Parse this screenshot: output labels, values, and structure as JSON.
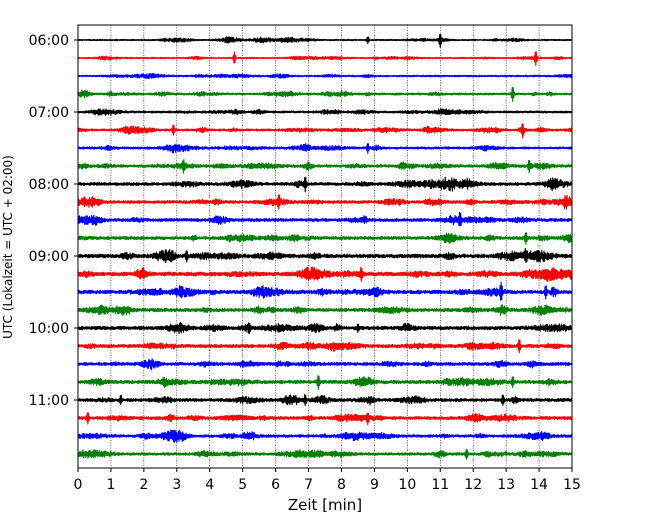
{
  "chart_data": {
    "type": "line",
    "title": "",
    "xlabel": "Zeit  [min]",
    "ylabel": "UTC (Lokalzeit = UTC + 02:00)",
    "xlim": [
      0,
      15
    ],
    "x_ticks": [
      "0",
      "1",
      "2",
      "3",
      "4",
      "5",
      "6",
      "7",
      "8",
      "9",
      "10",
      "11",
      "12",
      "13",
      "14",
      "15"
    ],
    "y_ticks": [
      "06:00",
      "07:00",
      "08:00",
      "09:00",
      "10:00",
      "11:00"
    ],
    "grid": "vertical dotted",
    "trace_interval_minutes": 15,
    "trace_start": "06:00",
    "trace_count": 24,
    "colors": [
      "#000000",
      "#ff0000",
      "#0000ff",
      "#008000"
    ],
    "row_activity": [
      0.6,
      0.6,
      0.7,
      0.9,
      0.9,
      1.0,
      1.0,
      1.2,
      1.3,
      1.3,
      1.4,
      1.4,
      1.7,
      1.7,
      1.6,
      1.5,
      1.6,
      1.5,
      1.4,
      1.5,
      1.4,
      1.4,
      1.2,
      1.2
    ],
    "notable_events": [
      {
        "row": 0,
        "t": 8.8,
        "amp": 1.4
      },
      {
        "row": 0,
        "t": 11.0,
        "amp": 2.5
      },
      {
        "row": 1,
        "t": 4.75,
        "amp": 2.6
      },
      {
        "row": 1,
        "t": 13.9,
        "amp": 3.0
      },
      {
        "row": 3,
        "t": 13.2,
        "amp": 3.2
      },
      {
        "row": 5,
        "t": 2.9,
        "amp": 2.2
      },
      {
        "row": 5,
        "t": 13.5,
        "amp": 2.4
      },
      {
        "row": 6,
        "t": 8.8,
        "amp": 2.0
      },
      {
        "row": 7,
        "t": 3.2,
        "amp": 2.0
      },
      {
        "row": 7,
        "t": 13.7,
        "amp": 2.2
      },
      {
        "row": 8,
        "t": 6.9,
        "amp": 3.0
      },
      {
        "row": 9,
        "t": 6.1,
        "amp": 2.0
      },
      {
        "row": 10,
        "t": 11.6,
        "amp": 2.0
      },
      {
        "row": 11,
        "t": 13.6,
        "amp": 2.4
      },
      {
        "row": 12,
        "t": 3.3,
        "amp": 2.0
      },
      {
        "row": 12,
        "t": 13.6,
        "amp": 2.0
      },
      {
        "row": 13,
        "t": 8.6,
        "amp": 2.4
      },
      {
        "row": 14,
        "t": 12.85,
        "amp": 3.2
      },
      {
        "row": 14,
        "t": 14.2,
        "amp": 2.6
      },
      {
        "row": 16,
        "t": 5.2,
        "amp": 2.0
      },
      {
        "row": 16,
        "t": 8.5,
        "amp": 1.6
      },
      {
        "row": 17,
        "t": 13.4,
        "amp": 2.6
      },
      {
        "row": 19,
        "t": 7.3,
        "amp": 3.0
      },
      {
        "row": 19,
        "t": 13.2,
        "amp": 2.2
      },
      {
        "row": 20,
        "t": 1.3,
        "amp": 1.8
      },
      {
        "row": 20,
        "t": 6.9,
        "amp": 2.2
      },
      {
        "row": 20,
        "t": 12.9,
        "amp": 2.0
      },
      {
        "row": 21,
        "t": 0.3,
        "amp": 2.2
      },
      {
        "row": 21,
        "t": 8.8,
        "amp": 1.8
      },
      {
        "row": 23,
        "t": 11.8,
        "amp": 2.0
      }
    ]
  }
}
